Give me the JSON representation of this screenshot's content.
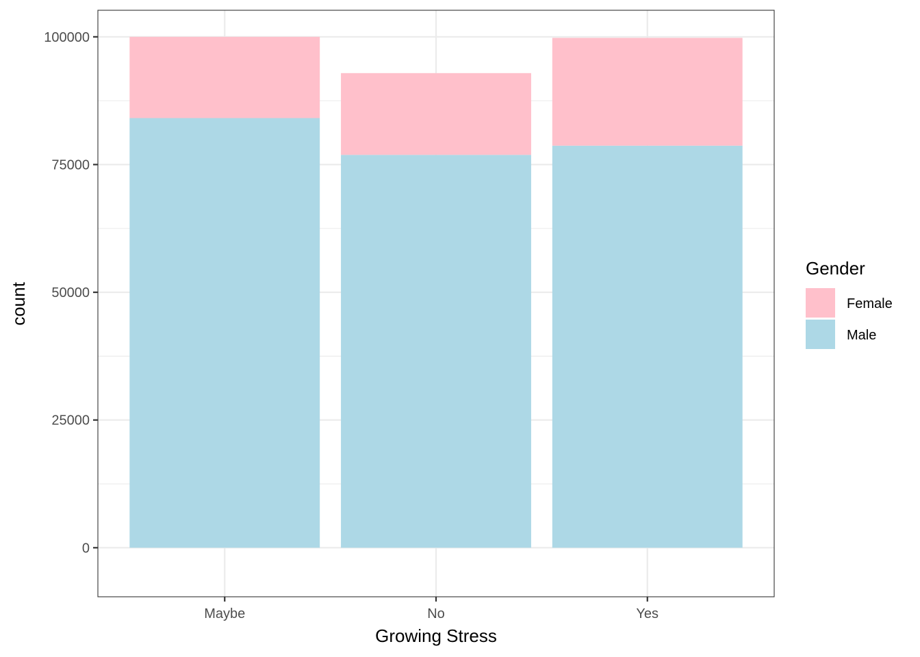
{
  "chart_data": {
    "type": "bar",
    "stacked": true,
    "categories": [
      "Maybe",
      "No",
      "Yes"
    ],
    "series": [
      {
        "name": "Male",
        "values": [
          84100,
          76900,
          78700
        ],
        "color": "#add8e6"
      },
      {
        "name": "Female",
        "values": [
          15900,
          16000,
          21100
        ],
        "color": "#ffc0cb"
      }
    ],
    "xlabel": "Growing Stress",
    "ylabel": "count",
    "ylim": [
      -9600,
      105200
    ],
    "yticks": [
      0,
      25000,
      50000,
      75000,
      100000
    ],
    "ytick_labels": [
      "0",
      "25000",
      "50000",
      "75000",
      "100000"
    ],
    "grid": true,
    "legend": {
      "title": "Gender",
      "position": "right",
      "entries": [
        {
          "label": "Female",
          "color": "#ffc0cb"
        },
        {
          "label": "Male",
          "color": "#add8e6"
        }
      ]
    }
  }
}
